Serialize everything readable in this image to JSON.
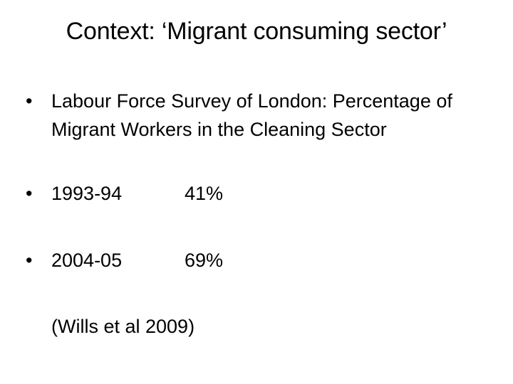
{
  "slide": {
    "title": "Context: ‘Migrant consuming sector’",
    "bullet_glyph": "•",
    "items": [
      {
        "text": "Labour Force Survey of London: Percentage of Migrant Workers in the Cleaning Sector"
      },
      {
        "label": "1993-94",
        "value": "41%"
      },
      {
        "label": "2004-05",
        "value": "69%"
      }
    ],
    "citation": "(Wills et al 2009)"
  }
}
